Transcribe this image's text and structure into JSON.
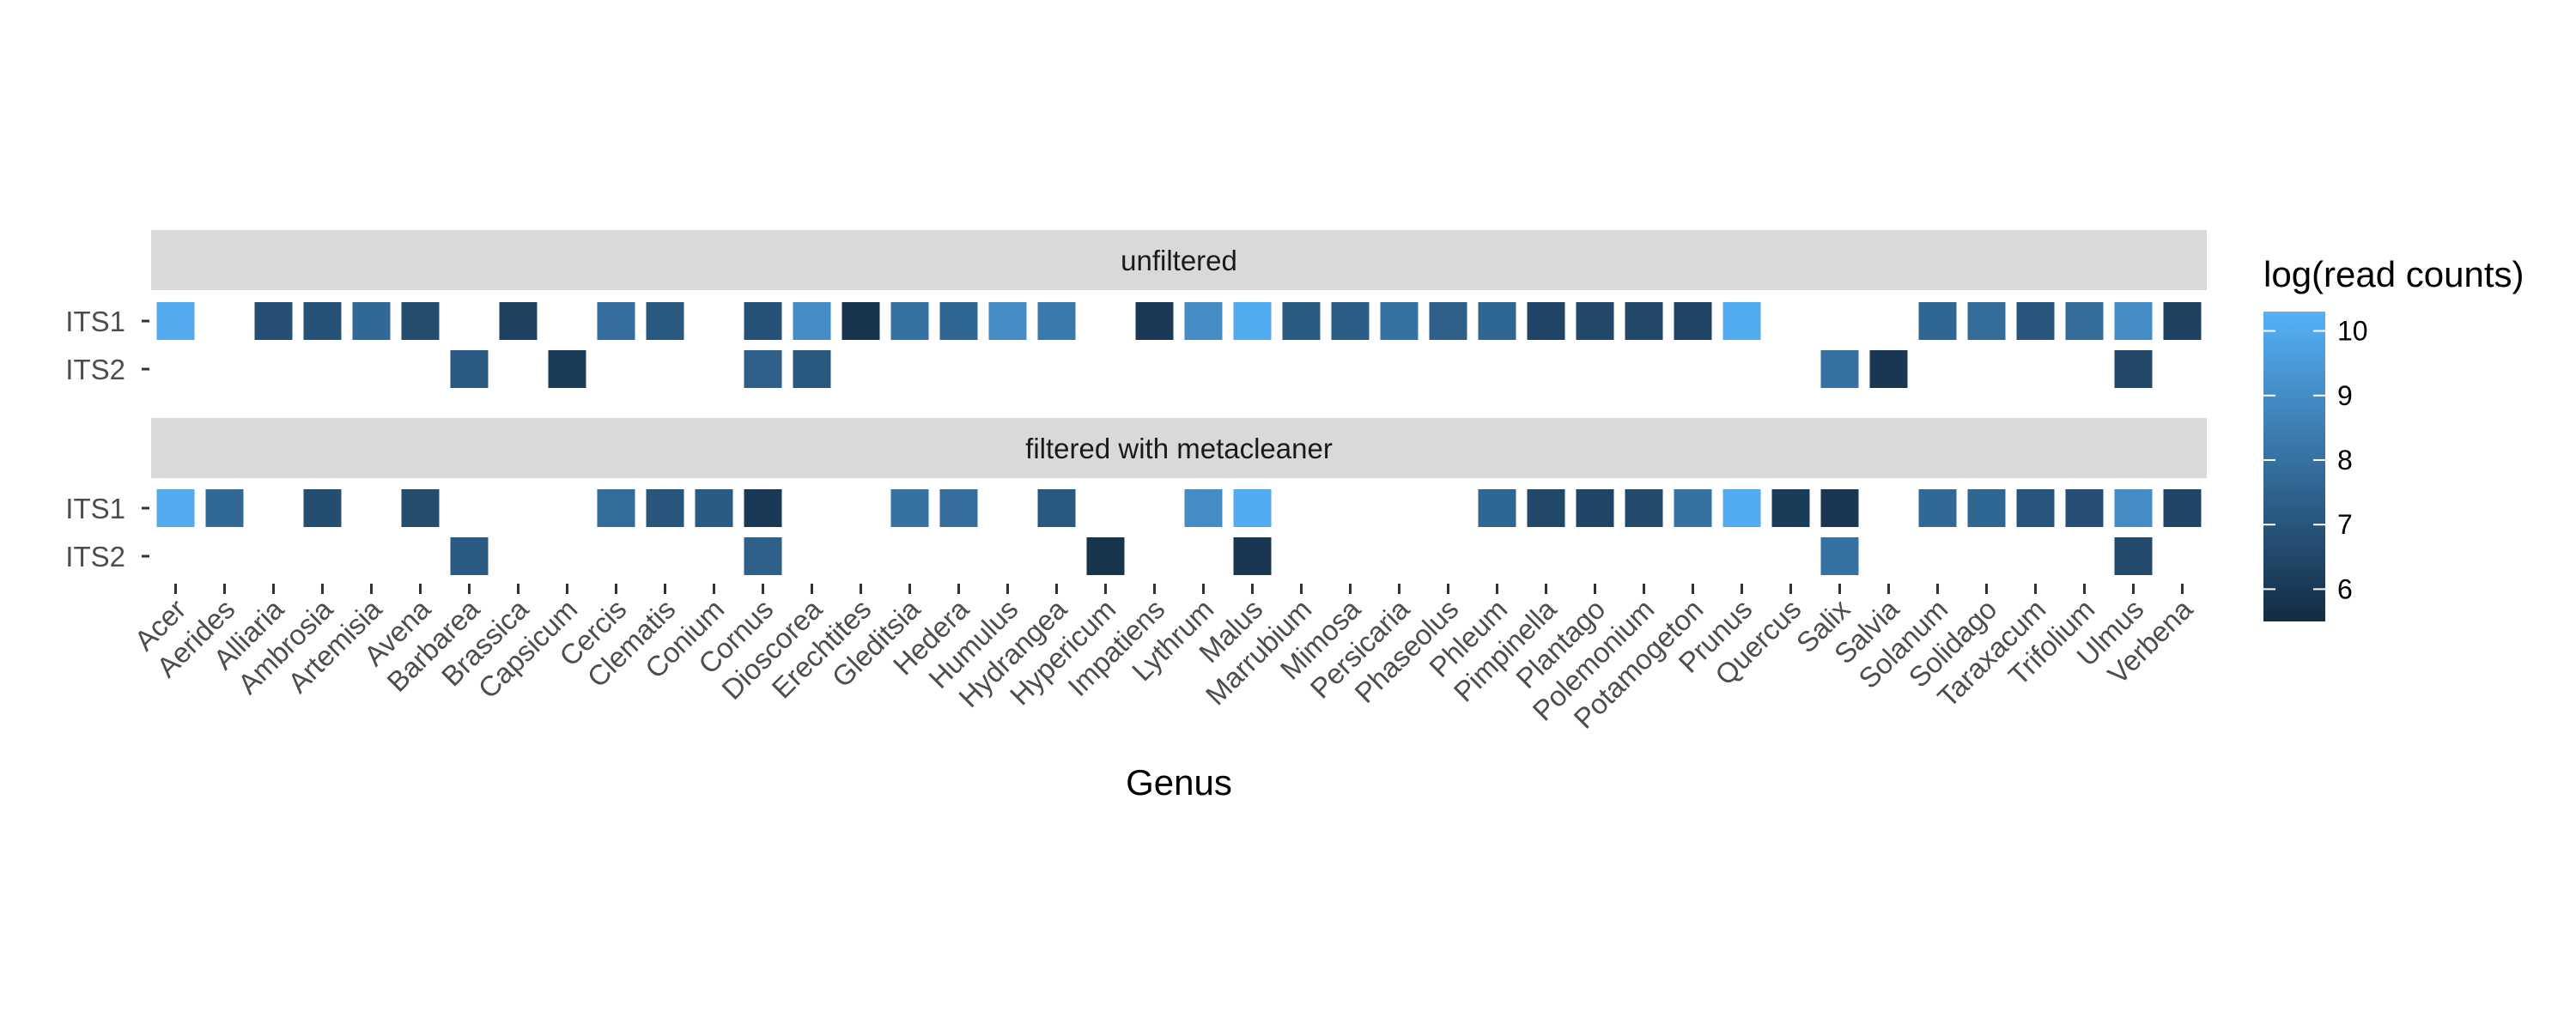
{
  "chart_data": {
    "type": "heatmap",
    "xlabel": "Genus",
    "legend_title": "log(read counts)",
    "legend_ticks": [
      6,
      7,
      8,
      9,
      10
    ],
    "legend_range": [
      5.5,
      10.3
    ],
    "legend_placement": "right",
    "color_low": "#132B43",
    "color_high": "#56B1F7",
    "grid": false,
    "rows": [
      "ITS1",
      "ITS2"
    ],
    "genera": [
      "Acer",
      "Aerides",
      "Alliaria",
      "Ambrosia",
      "Artemisia",
      "Avena",
      "Barbarea",
      "Brassica",
      "Capsicum",
      "Cercis",
      "Clematis",
      "Conium",
      "Cornus",
      "Dioscorea",
      "Erechtites",
      "Gleditsia",
      "Hedera",
      "Humulus",
      "Hydrangea",
      "Hypericum",
      "Impatiens",
      "Lythrum",
      "Malus",
      "Marrubium",
      "Mimosa",
      "Persicaria",
      "Phaseolus",
      "Phleum",
      "Pimpinella",
      "Plantago",
      "Polemonium",
      "Potamogeton",
      "Prunus",
      "Quercus",
      "Salix",
      "Salvia",
      "Solanum",
      "Solidago",
      "Taraxacum",
      "Trifolium",
      "Ulmus",
      "Verbena"
    ],
    "panels": [
      {
        "label": "unfiltered",
        "values": {
          "ITS1": [
            10.0,
            null,
            6.8,
            6.9,
            7.7,
            6.7,
            null,
            6.3,
            null,
            7.9,
            7.1,
            null,
            6.9,
            9.0,
            5.8,
            8.0,
            7.6,
            9.0,
            8.3,
            null,
            6.0,
            9.0,
            10.1,
            7.2,
            7.3,
            8.0,
            7.4,
            7.6,
            6.4,
            6.5,
            6.5,
            6.4,
            10.1,
            null,
            null,
            null,
            7.6,
            7.8,
            7.0,
            7.8,
            9.0,
            6.3
          ],
          "ITS2": [
            null,
            null,
            null,
            null,
            null,
            null,
            7.2,
            null,
            6.1,
            null,
            null,
            null,
            7.4,
            7.1,
            null,
            null,
            null,
            null,
            null,
            null,
            null,
            null,
            null,
            null,
            null,
            null,
            null,
            null,
            null,
            null,
            null,
            null,
            null,
            null,
            8.0,
            5.9,
            null,
            null,
            null,
            null,
            6.5,
            null
          ]
        }
      },
      {
        "label": "filtered with metacleaner",
        "values": {
          "ITS1": [
            10.0,
            7.7,
            null,
            6.7,
            null,
            6.7,
            null,
            null,
            null,
            7.8,
            7.0,
            7.2,
            6.0,
            null,
            null,
            8.0,
            7.9,
            null,
            7.1,
            null,
            null,
            9.0,
            10.1,
            null,
            null,
            null,
            null,
            7.6,
            6.5,
            6.4,
            6.6,
            8.0,
            10.1,
            6.1,
            5.9,
            null,
            7.7,
            7.6,
            7.0,
            6.8,
            9.0,
            6.4
          ],
          "ITS2": [
            null,
            null,
            null,
            null,
            null,
            null,
            7.2,
            null,
            null,
            null,
            null,
            null,
            7.4,
            null,
            null,
            null,
            null,
            null,
            null,
            5.8,
            null,
            null,
            5.9,
            null,
            null,
            null,
            null,
            null,
            null,
            null,
            null,
            null,
            null,
            null,
            8.0,
            null,
            null,
            null,
            null,
            null,
            6.6,
            null
          ]
        }
      }
    ]
  }
}
